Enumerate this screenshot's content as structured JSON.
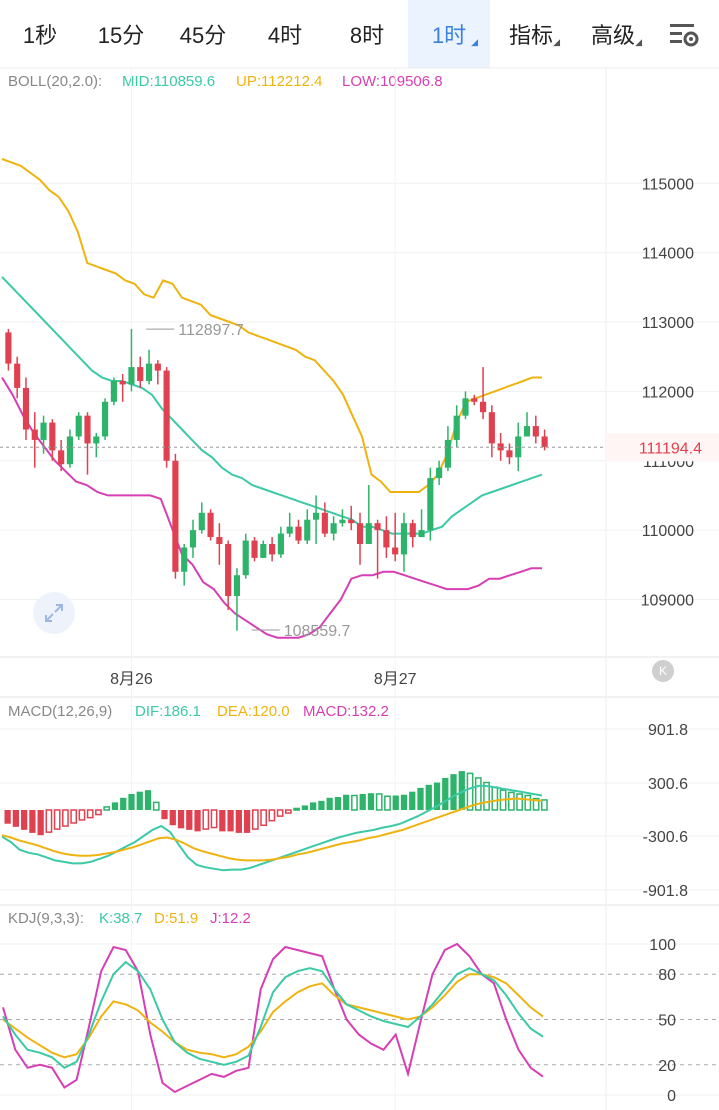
{
  "tabs": [
    {
      "label": "1秒",
      "active": false,
      "dropdown": false
    },
    {
      "label": "15分",
      "active": false,
      "dropdown": false
    },
    {
      "label": "45分",
      "active": false,
      "dropdown": false
    },
    {
      "label": "4时",
      "active": false,
      "dropdown": false
    },
    {
      "label": "8时",
      "active": false,
      "dropdown": false
    },
    {
      "label": "1时",
      "active": true,
      "dropdown": true
    },
    {
      "label": "指标",
      "active": false,
      "dropdown": true
    },
    {
      "label": "高级",
      "active": false,
      "dropdown": true
    }
  ],
  "settings_icon": "chart-settings-icon",
  "colors": {
    "up": "#2db46a",
    "down": "#e04150",
    "mid": "#3cc9a6",
    "upper": "#efb310",
    "lower": "#d63fb4",
    "active_tab": "#3b82d8",
    "price_tag": "#e04150"
  },
  "chart_data": [
    {
      "type": "candlestick",
      "indicator": {
        "name": "BOLL(20,2.0):",
        "mid": "MID:110859.6",
        "up": "UP:112212.4",
        "low": "LOW:109506.8"
      },
      "y_ticks": [
        "115000",
        "114000",
        "113000",
        "112000",
        "111000",
        "110000",
        "109000"
      ],
      "ylim": [
        108200,
        116200
      ],
      "x_labels": [
        {
          "label": "8月26",
          "index": 14
        },
        {
          "label": "8月27",
          "index": 44
        }
      ],
      "current_price": "111194.4",
      "current_price_value": 111194.4,
      "high_label": {
        "text": "112897.7",
        "index": 15,
        "value": 112897.7
      },
      "low_label": {
        "text": "108559.7",
        "index": 27,
        "value": 108559.7
      },
      "candles": [
        [
          112850,
          112400,
          112900,
          112300
        ],
        [
          112400,
          112050,
          112500,
          111900
        ],
        [
          112050,
          111450,
          112200,
          111300
        ],
        [
          111450,
          111300,
          111700,
          110900
        ],
        [
          111300,
          111550,
          111650,
          111100
        ],
        [
          111550,
          111150,
          111600,
          111000
        ],
        [
          111150,
          110950,
          111300,
          110850
        ],
        [
          110950,
          111350,
          111450,
          110900
        ],
        [
          111350,
          111650,
          111700,
          111300
        ],
        [
          111650,
          111250,
          111700,
          110800
        ],
        [
          111250,
          111350,
          111400,
          111050
        ],
        [
          111350,
          111850,
          111900,
          111300
        ],
        [
          111850,
          112150,
          112200,
          111800
        ],
        [
          112150,
          112100,
          112250,
          111850
        ],
        [
          112100,
          112350,
          112900,
          112000
        ],
        [
          112350,
          112150,
          112500,
          112050
        ],
        [
          112150,
          112400,
          112600,
          112100
        ],
        [
          112400,
          112300,
          112450,
          112100
        ],
        [
          112300,
          111000,
          112350,
          110900
        ],
        [
          111000,
          109400,
          111100,
          109300
        ],
        [
          109400,
          109750,
          109800,
          109200
        ],
        [
          109750,
          110000,
          110150,
          109600
        ],
        [
          110000,
          110250,
          110400,
          109950
        ],
        [
          110250,
          109900,
          110300,
          109850
        ],
        [
          109900,
          109800,
          110100,
          109500
        ],
        [
          109800,
          109050,
          109850,
          108850
        ],
        [
          109050,
          109350,
          109450,
          108550
        ],
        [
          109350,
          109850,
          109950,
          109300
        ],
        [
          109850,
          109600,
          109900,
          109550
        ],
        [
          109600,
          109800,
          109850,
          109600
        ],
        [
          109800,
          109650,
          109900,
          109550
        ],
        [
          109650,
          109950,
          110050,
          109600
        ],
        [
          109950,
          110050,
          110250,
          109900
        ],
        [
          110050,
          109850,
          110150,
          109800
        ],
        [
          109850,
          110150,
          110300,
          109800
        ],
        [
          110150,
          110250,
          110500,
          109800
        ],
        [
          110250,
          109950,
          110400,
          109900
        ],
        [
          109950,
          110100,
          110200,
          109850
        ],
        [
          110100,
          110150,
          110300,
          110050
        ],
        [
          110150,
          110100,
          110350,
          110000
        ],
        [
          110100,
          109800,
          110250,
          109500
        ],
        [
          109800,
          110100,
          110650,
          109800
        ],
        [
          110100,
          110000,
          110150,
          109300
        ],
        [
          110000,
          109750,
          110200,
          109600
        ],
        [
          109750,
          109650,
          110250,
          109550
        ],
        [
          109650,
          110100,
          110250,
          109400
        ],
        [
          110100,
          109900,
          110150,
          109750
        ],
        [
          109900,
          110000,
          110300,
          109900
        ],
        [
          110000,
          110750,
          110900,
          109850
        ],
        [
          110750,
          110900,
          111000,
          110650
        ],
        [
          110900,
          111300,
          111500,
          110850
        ],
        [
          111300,
          111650,
          111800,
          111200
        ],
        [
          111650,
          111900,
          112000,
          111600
        ],
        [
          111900,
          111850,
          111950,
          111800
        ],
        [
          111850,
          111700,
          112350,
          111600
        ],
        [
          111700,
          111250,
          111800,
          111050
        ],
        [
          111250,
          111150,
          111400,
          111000
        ],
        [
          111150,
          111050,
          111250,
          110950
        ],
        [
          111050,
          111350,
          111550,
          110850
        ],
        [
          111350,
          111500,
          111700,
          111350
        ],
        [
          111500,
          111350,
          111650,
          111250
        ],
        [
          111350,
          111200,
          111450,
          111150
        ]
      ],
      "boll_up": [
        115350,
        115300,
        115250,
        115150,
        115050,
        114900,
        114800,
        114600,
        114300,
        113850,
        113800,
        113750,
        113700,
        113600,
        113550,
        113400,
        113350,
        113600,
        113550,
        113350,
        113300,
        113250,
        113100,
        113050,
        113000,
        112950,
        112850,
        112800,
        112750,
        112700,
        112650,
        112600,
        112500,
        112450,
        112300,
        112150,
        111950,
        111650,
        111350,
        110800,
        110700,
        110550,
        110550,
        110550,
        110550,
        110650,
        110800,
        111100,
        111550,
        111850,
        111900,
        111950,
        112000,
        112050,
        112100,
        112150,
        112200,
        112200
      ],
      "boll_mid": [
        113650,
        113500,
        113350,
        113200,
        113050,
        112900,
        112750,
        112600,
        112450,
        112300,
        112200,
        112150,
        112150,
        112100,
        112050,
        111950,
        111750,
        111600,
        111450,
        111300,
        111150,
        111050,
        110900,
        110800,
        110750,
        110650,
        110600,
        110550,
        110500,
        110450,
        110400,
        110350,
        110300,
        110250,
        110200,
        110150,
        110050,
        110050,
        110000,
        109950,
        109950,
        109950,
        109950,
        110000,
        110050,
        110200,
        110300,
        110400,
        110500,
        110550,
        110600,
        110650,
        110700,
        110750,
        110800
      ],
      "boll_low": [
        112200,
        111950,
        111650,
        111400,
        111200,
        111000,
        110850,
        110700,
        110650,
        110550,
        110500,
        110500,
        110500,
        110500,
        110500,
        110450,
        110050,
        109650,
        109500,
        109250,
        109150,
        108950,
        108800,
        108700,
        108600,
        108500,
        108450,
        108450,
        108450,
        108500,
        108600,
        108800,
        109000,
        109300,
        109350,
        109350,
        109400,
        109400,
        109350,
        109300,
        109250,
        109200,
        109150,
        109150,
        109150,
        109200,
        109300,
        109300,
        109350,
        109400,
        109450,
        109450
      ],
      "last_candle_label": ""
    },
    {
      "type": "macd",
      "indicator": {
        "name": "MACD(12,26,9)",
        "dif": "DIF:186.1",
        "dea": "DEA:120.0",
        "macd": "MACD:132.2"
      },
      "y_ticks": [
        "901.8",
        "300.6",
        "-300.6",
        "-901.8"
      ],
      "ylim": [
        -1050,
        1050
      ],
      "hist": [
        -180,
        -220,
        -260,
        -300,
        -330,
        -290,
        -250,
        -210,
        -170,
        -130,
        -100,
        -60,
        40,
        100,
        160,
        210,
        240,
        260,
        100,
        -120,
        -200,
        -240,
        -260,
        -280,
        -250,
        -230,
        -280,
        -280,
        -300,
        -300,
        -250,
        -200,
        -140,
        -80,
        -40,
        20,
        60,
        100,
        120,
        160,
        170,
        200,
        190,
        210,
        220,
        210,
        180,
        190,
        200,
        240,
        290,
        330,
        360,
        420,
        470,
        510,
        480,
        420,
        360,
        300,
        260,
        230,
        210,
        190,
        150,
        132
      ],
      "dif": [
        -350,
        -420,
        -520,
        -560,
        -580,
        -620,
        -660,
        -680,
        -700,
        -700,
        -680,
        -640,
        -600,
        -540,
        -480,
        -420,
        -340,
        -260,
        -210,
        -290,
        -460,
        -620,
        -720,
        -750,
        -770,
        -790,
        -780,
        -780,
        -760,
        -720,
        -680,
        -640,
        -600,
        -560,
        -520,
        -480,
        -440,
        -400,
        -360,
        -330,
        -300,
        -280,
        -260,
        -230,
        -210,
        -180,
        -130,
        -80,
        -20,
        40,
        110,
        180,
        240,
        290,
        320,
        310,
        290,
        270,
        250,
        230,
        210,
        190
      ],
      "dea": [
        -330,
        -360,
        -400,
        -430,
        -460,
        -500,
        -540,
        -570,
        -590,
        -600,
        -600,
        -590,
        -570,
        -550,
        -520,
        -490,
        -450,
        -410,
        -370,
        -360,
        -390,
        -440,
        -500,
        -540,
        -570,
        -600,
        -630,
        -650,
        -660,
        -660,
        -660,
        -650,
        -630,
        -610,
        -580,
        -560,
        -530,
        -500,
        -470,
        -440,
        -420,
        -400,
        -370,
        -350,
        -320,
        -290,
        -260,
        -220,
        -180,
        -140,
        -100,
        -60,
        -20,
        20,
        60,
        90,
        110,
        130,
        140,
        150,
        140,
        130,
        120
      ]
    },
    {
      "type": "kdj",
      "indicator": {
        "name": "KDJ(9,3,3):",
        "k": "K:38.7",
        "d": "D:51.9",
        "j": "J:12.2"
      },
      "y_ticks": [
        "100",
        "80",
        "50",
        "20",
        "0"
      ],
      "ylim": [
        -5,
        115
      ],
      "k": [
        52,
        40,
        30,
        28,
        25,
        18,
        22,
        40,
        62,
        80,
        88,
        82,
        70,
        50,
        35,
        28,
        24,
        22,
        20,
        22,
        26,
        45,
        68,
        78,
        82,
        84,
        82,
        70,
        60,
        56,
        52,
        49,
        47,
        45,
        52,
        60,
        70,
        80,
        84,
        80,
        76,
        66,
        54,
        44,
        38.7
      ],
      "d": [
        50,
        44,
        38,
        33,
        28,
        25,
        27,
        38,
        52,
        62,
        60,
        56,
        48,
        42,
        35,
        30,
        28,
        27,
        25,
        27,
        32,
        42,
        55,
        62,
        68,
        72,
        74,
        66,
        60,
        58,
        56,
        54,
        52,
        50,
        52,
        58,
        66,
        75,
        80,
        80,
        78,
        74,
        66,
        58,
        51.9
      ],
      "j": [
        58,
        30,
        18,
        20,
        18,
        5,
        10,
        45,
        82,
        98,
        96,
        82,
        40,
        8,
        2,
        6,
        10,
        14,
        12,
        16,
        18,
        70,
        90,
        98,
        96,
        94,
        92,
        70,
        50,
        40,
        34,
        30,
        40,
        14,
        48,
        80,
        96,
        100,
        92,
        80,
        74,
        50,
        30,
        18,
        12.2
      ]
    }
  ]
}
